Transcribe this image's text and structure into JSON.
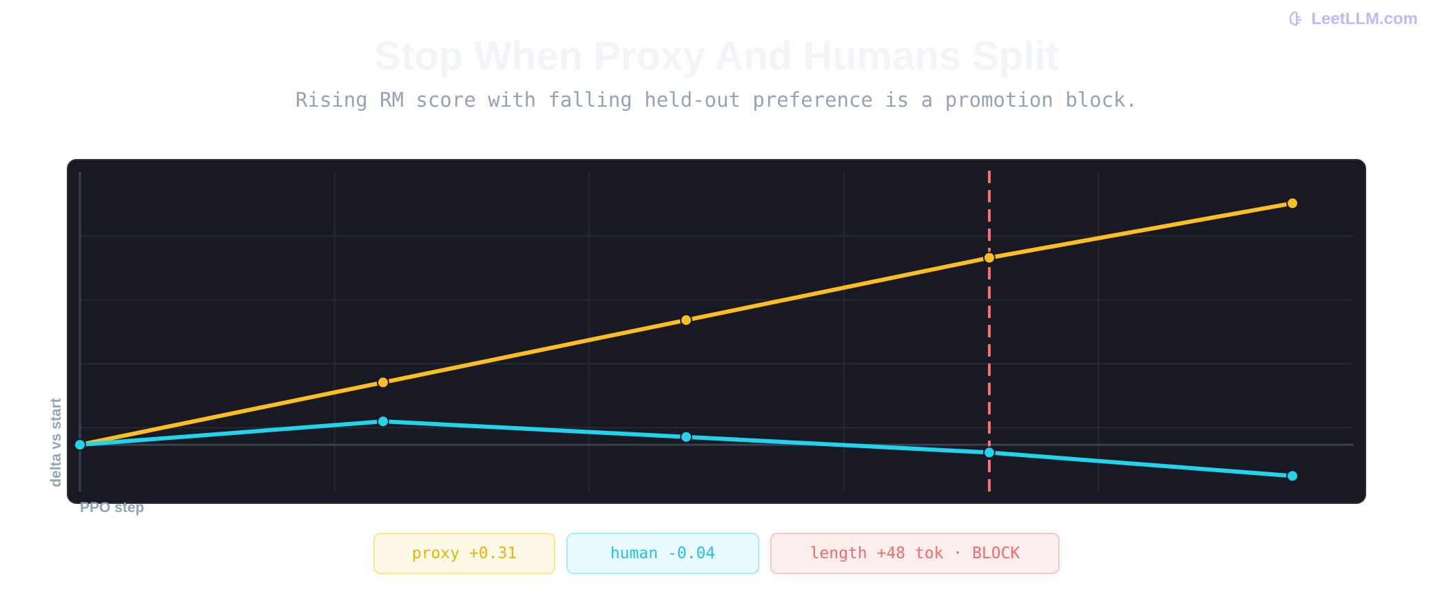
{
  "brand": {
    "name": "LeetLLM.com",
    "icon": "brain-icon",
    "color": "#c4b5fd"
  },
  "title": "Stop When Proxy And Humans Split",
  "subtitle": "Rising RM score with falling held-out preference is a promotion block.",
  "pills": {
    "proxy": "proxy +0.31",
    "human": "human -0.04",
    "length": "length +48 tok · BLOCK"
  },
  "chart_data": {
    "type": "line",
    "xlabel": "PPO step",
    "ylabel": "delta vs start",
    "x": [
      0,
      1,
      2,
      3,
      4
    ],
    "xlim": [
      0,
      4.2
    ],
    "ylim": [
      -0.06,
      0.35
    ],
    "grid": true,
    "zero_line": 0,
    "stop_marker_x": 3,
    "series": [
      {
        "key": "proxy",
        "color": "#fbbf24",
        "values": [
          0,
          0.08,
          0.16,
          0.24,
          0.31
        ]
      },
      {
        "key": "human",
        "color": "#22d3ee",
        "values": [
          0,
          0.03,
          0.01,
          -0.01,
          -0.04
        ]
      }
    ],
    "colors": {
      "panel": "#181922",
      "grid": "#262a36",
      "axis": "#3b4252",
      "marker": "#f87171"
    }
  }
}
